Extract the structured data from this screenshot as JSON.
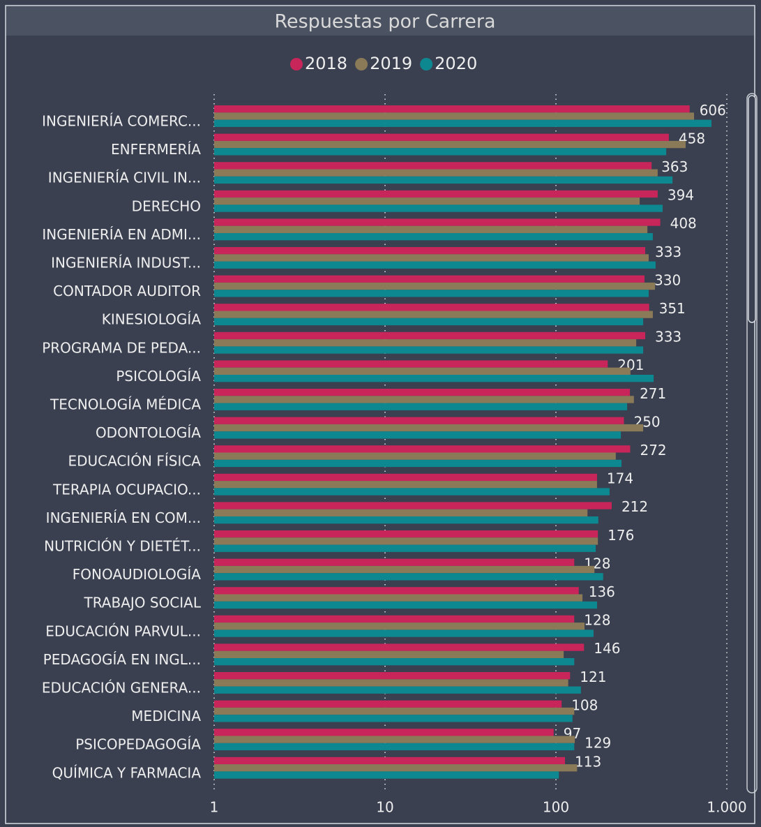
{
  "chart_data": {
    "type": "bar",
    "orientation": "horizontal",
    "title": "Respuestas por Carrera",
    "categories": [
      "INGENIERÍA COMERC...",
      "ENFERMERÍA",
      "INGENIERÍA CIVIL IN...",
      "DERECHO",
      "INGENIERÍA EN ADMI...",
      "INGENIERÍA INDUST...",
      "CONTADOR AUDITOR",
      "KINESIOLOGÍA",
      "PROGRAMA DE PEDA...",
      "PSICOLOGÍA",
      "TECNOLOGÍA MÉDICA",
      "ODONTOLOGÍA",
      "EDUCACIÓN FÍSICA",
      "TERAPIA OCUPACIO...",
      "INGENIERÍA EN COM...",
      "NUTRICIÓN Y DIETÉT...",
      "FONOAUDIOLOGÍA",
      "TRABAJO SOCIAL",
      "EDUCACIÓN PARVUL...",
      "PEDAGOGÍA EN INGL...",
      "EDUCACIÓN GENERA...",
      "MEDICINA",
      "PSICOPEDAGOGÍA",
      "QUÍMICA Y FARMACIA"
    ],
    "series": [
      {
        "name": "2018",
        "color": "#c8255a",
        "data_labels": true,
        "values": [
          606,
          458,
          363,
          394,
          408,
          333,
          330,
          351,
          333,
          201,
          271,
          250,
          272,
          174,
          212,
          176,
          128,
          136,
          128,
          146,
          121,
          108,
          97,
          113
        ]
      },
      {
        "name": "2019",
        "color": "#8a7a58",
        "data_labels": [
          22
        ],
        "values": [
          643,
          574,
          394,
          309,
          343,
          349,
          380,
          369,
          295,
          273,
          286,
          324,
          224,
          174,
          153,
          176,
          168,
          143,
          147,
          111,
          118,
          128,
          129,
          133
        ]
      },
      {
        "name": "2020",
        "color": "#0e8890",
        "data_labels": false,
        "values": [
          813,
          442,
          481,
          421,
          369,
          383,
          349,
          324,
          324,
          373,
          261,
          240,
          242,
          206,
          177,
          171,
          189,
          174,
          166,
          128,
          140,
          125,
          128,
          104
        ]
      }
    ],
    "xscale": "log",
    "xlim": [
      1,
      1000
    ],
    "xticks": [
      1,
      10,
      100,
      {
        "value": 1000,
        "label": "1.000"
      }
    ],
    "grid": true,
    "legend": "top"
  }
}
